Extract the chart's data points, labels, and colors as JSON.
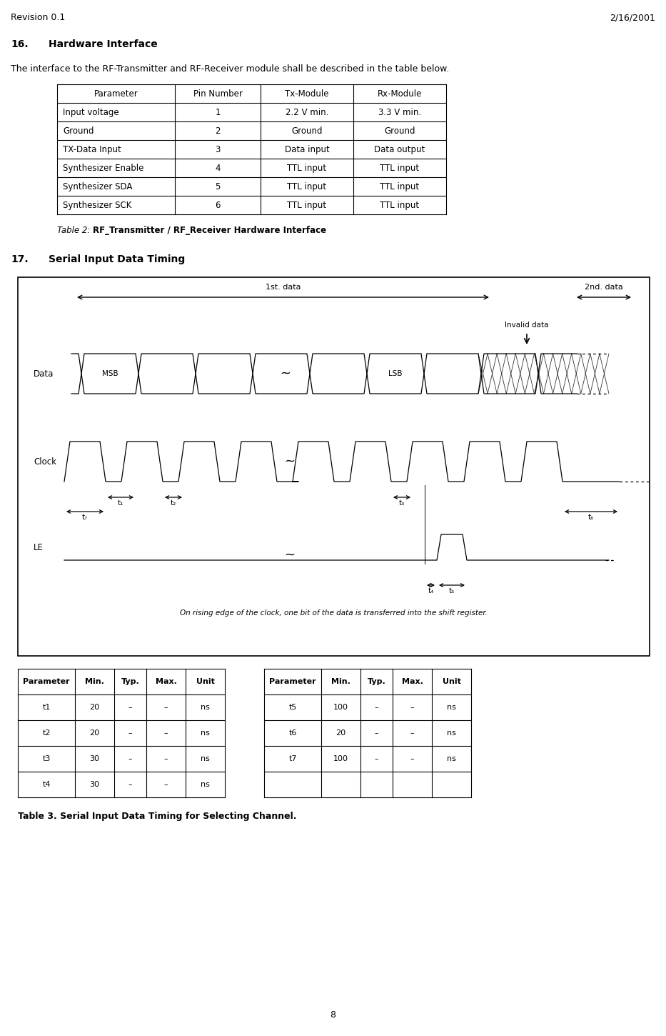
{
  "revision": "Revision 0.1",
  "date": "2/16/2001",
  "page_number": "8",
  "section16_body": "The interface to the RF-Transmitter and RF-Receiver module shall be described in the table below.",
  "table1_headers": [
    "Parameter",
    "Pin Number",
    "Tx-Module",
    "Rx-Module"
  ],
  "table1_rows": [
    [
      "Input voltage",
      "1",
      "2.2 V min.",
      "3.3 V min."
    ],
    [
      "Ground",
      "2",
      "Ground",
      "Ground"
    ],
    [
      "TX-Data Input",
      "3",
      "Data input",
      "Data output"
    ],
    [
      "Synthesizer Enable",
      "4",
      "TTL input",
      "TTL input"
    ],
    [
      "Synthesizer SDA",
      "5",
      "TTL input",
      "TTL input"
    ],
    [
      "Synthesizer SCK",
      "6",
      "TTL input",
      "TTL input"
    ]
  ],
  "timing_note": "On rising edge of the clock, one bit of the data is transferred into the shift register.",
  "table2_left_headers": [
    "Parameter",
    "Min.",
    "Typ.",
    "Max.",
    "Unit"
  ],
  "table2_left_rows": [
    [
      "t1",
      "20",
      "–",
      "–",
      "ns"
    ],
    [
      "t2",
      "20",
      "–",
      "–",
      "ns"
    ],
    [
      "t3",
      "30",
      "–",
      "–",
      "ns"
    ],
    [
      "t4",
      "30",
      "–",
      "–",
      "ns"
    ]
  ],
  "table2_right_headers": [
    "Parameter",
    "Min.",
    "Typ.",
    "Max.",
    "Unit"
  ],
  "table2_right_rows": [
    [
      "t5",
      "100",
      "–",
      "–",
      "ns"
    ],
    [
      "t6",
      "20",
      "–",
      "–",
      "ns"
    ],
    [
      "t7",
      "100",
      "–",
      "–",
      "ns"
    ],
    [
      "",
      "",
      "",
      "",
      ""
    ]
  ],
  "bg_color": "#ffffff",
  "text_color": "#000000"
}
